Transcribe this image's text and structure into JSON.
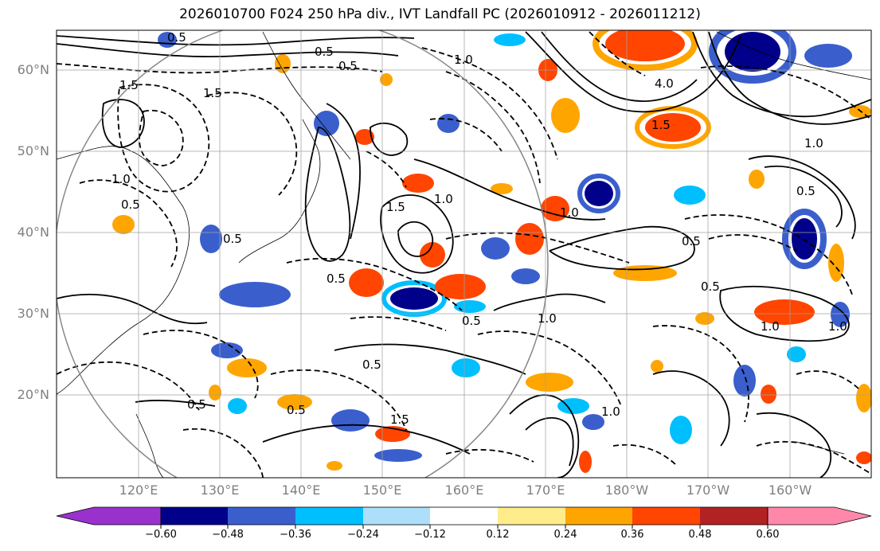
{
  "title": "2026010700 F024 250 hPa div., IVT Landfall PC (2026010912 - 2026011212)",
  "lat_labels": [
    "60°N",
    "50°N",
    "40°N",
    "30°N",
    "20°N"
  ],
  "lon_labels": [
    "120°E",
    "130°E",
    "140°E",
    "150°E",
    "160°E",
    "170°E",
    "180°W",
    "170°W",
    "160°W"
  ],
  "colorbar": {
    "ticks": [
      "−0.60",
      "−0.48",
      "−0.36",
      "−0.24",
      "−0.12",
      "0.12",
      "0.24",
      "0.36",
      "0.48",
      "0.60"
    ],
    "colors": [
      "#9932CC",
      "#00008B",
      "#3A5FCD",
      "#00BFFF",
      "#ADDEFA",
      "#FFFFFF",
      "#FFEC8B",
      "#FFA500",
      "#FF4500",
      "#B22222",
      "#FF88AA"
    ]
  },
  "contour_labels": [
    "0.5",
    "0.5",
    "1.5",
    "0.5",
    "1.5",
    "4.0",
    "1.5",
    "1.0",
    "1.0",
    "0.5",
    "1.0",
    "0.5",
    "0.5",
    "1.0",
    "0.5",
    "0.5",
    "1.0",
    "0.5",
    "1.0",
    "1.0",
    "0.5",
    "0.5",
    "1.5",
    "1.0",
    "0.5",
    "1.5",
    "0.5",
    "1.0"
  ],
  "chart_data": {
    "type": "map",
    "lat_range": [
      10,
      65
    ],
    "lon_range": [
      110,
      210
    ],
    "shading": "250 hPa divergence, IVT landfall PC",
    "contours": "solid positive / dashed negative"
  }
}
